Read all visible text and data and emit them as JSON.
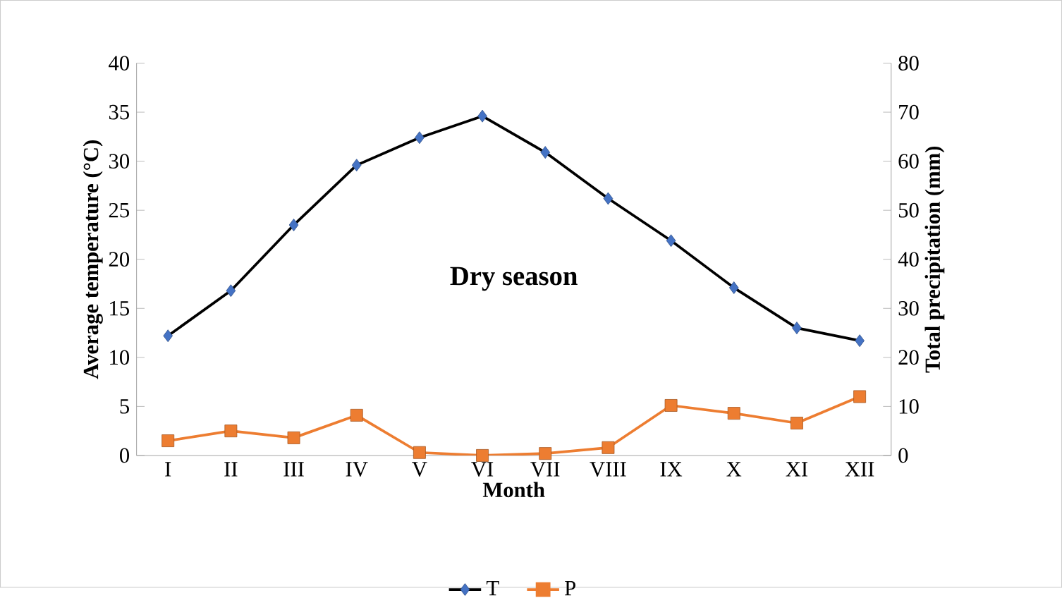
{
  "chart_data": {
    "type": "line",
    "xlabel": "Month",
    "ylabel": "Average temperature (°C)",
    "y2label": "Total precipitation (mm)",
    "categories": [
      "I",
      "II",
      "III",
      "IV",
      "V",
      "VI",
      "VII",
      "VIII",
      "IX",
      "X",
      "XI",
      "XII"
    ],
    "series": [
      {
        "name": "T",
        "color": "#4472c4",
        "marker": "diamond",
        "values": [
          12.2,
          16.8,
          23.5,
          29.6,
          32.4,
          34.6,
          30.9,
          26.2,
          21.9,
          17.1,
          13.0,
          11.7
        ]
      },
      {
        "name": "P",
        "color": "#ed7d31",
        "marker": "square",
        "axis": "y2",
        "values": [
          3.0,
          5.0,
          3.6,
          8.2,
          0.6,
          0,
          0.4,
          1.6,
          10.2,
          8.6,
          6.6,
          12.0
        ]
      }
    ],
    "ylim": [
      0,
      40
    ],
    "yticks": [
      0,
      5,
      10,
      15,
      20,
      25,
      30,
      35,
      40
    ],
    "y2lim": [
      0,
      80
    ],
    "y2ticks": [
      0,
      10,
      20,
      30,
      40,
      50,
      60,
      70,
      80
    ],
    "annotations": [
      "Dry season"
    ],
    "legend": "bottom",
    "grid": false
  }
}
